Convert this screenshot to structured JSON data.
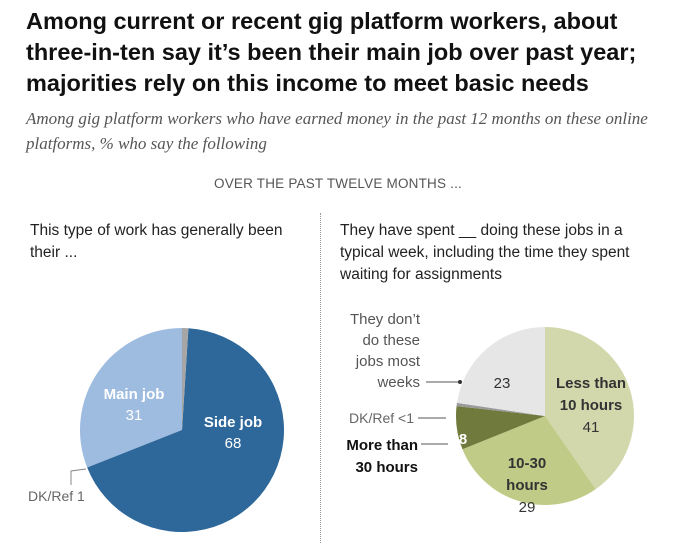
{
  "title": "Among current or recent gig platform workers, about three-in-ten say it’s been their main job over past year; majorities rely on this income to meet basic needs",
  "subtitle": "Among gig platform workers who have earned money in the past 12 months on these online platforms, % who say the following",
  "section_label": "OVER THE PAST TWELVE MONTHS ...",
  "colors": {
    "main_job": "#9ebce0",
    "side_job": "#2e6799",
    "dk_left": "#a6a6a6",
    "less_than_10": "#d2d8ac",
    "ten_to_30": "#bfcb86",
    "more_than_30": "#6f7a3c",
    "dont_do": "#e6e6e6",
    "dk_right": "#9a9a9a"
  },
  "chart_data": [
    {
      "type": "pie",
      "title": "This type of work has generally been their ...",
      "slices": [
        {
          "key": "main_job",
          "name": "Main job",
          "value": 31
        },
        {
          "key": "side_job",
          "name": "Side job",
          "value": 68
        },
        {
          "key": "dk_left",
          "name": "DK/Ref",
          "value": 1
        }
      ],
      "labels": {
        "main_job_name": "Main job",
        "main_job_value": "31",
        "side_job_name": "Side job",
        "side_job_value": "68",
        "dk": "DK/Ref 1"
      }
    },
    {
      "type": "pie",
      "title": "They have spent __ doing these jobs in a typical week, including the time they spent waiting for assignments",
      "slices": [
        {
          "key": "less_than_10",
          "name": "Less than 10 hours",
          "value": 41
        },
        {
          "key": "ten_to_30",
          "name": "10-30 hours",
          "value": 29
        },
        {
          "key": "more_than_30",
          "name": "More than 30 hours",
          "value": 8
        },
        {
          "key": "dk_right",
          "name": "DK/Ref",
          "value": 0.6
        },
        {
          "key": "dont_do",
          "name": "They don't do these jobs most weeks",
          "value": 23
        }
      ],
      "labels": {
        "less_10_line1": "Less than",
        "less_10_line2": "10 hours",
        "less_10_value": "41",
        "ten_30_line1": "10-30",
        "ten_30_line2": "hours",
        "ten_30_value": "29",
        "more_30_line1": "More than",
        "more_30_line2": "30 hours",
        "more_30_value": "8",
        "dk": "DK/Ref <1",
        "dont_line1": "They don’t",
        "dont_line2": "do these",
        "dont_line3": "jobs most",
        "dont_line4": "weeks",
        "dont_value": "23"
      }
    }
  ]
}
